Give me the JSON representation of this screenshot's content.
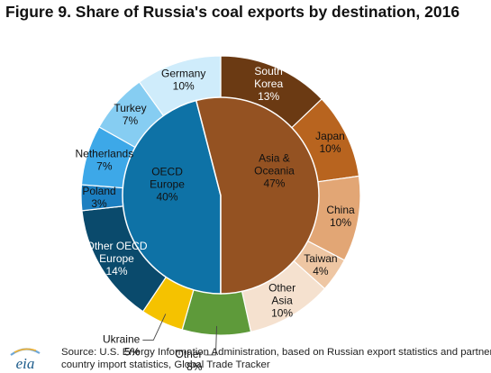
{
  "title": "Figure 9. Share of Russia's coal exports by destination, 2016",
  "source": "Source: U.S. Energy Information Administration, based on Russian export statistics and partner country import statistics, Global Trade Tracker",
  "logo": {
    "text": "eia",
    "colors": [
      "#1a5a8a",
      "#6fa8d8",
      "#f2b233"
    ]
  },
  "chart_data": {
    "type": "pie",
    "inner_ring": [
      {
        "label": [
          "OECD",
          "Europe"
        ],
        "pct": "40%",
        "value": 40,
        "color": "#0e72a6",
        "text_color": "#111111"
      },
      {
        "label": [
          "Asia &",
          "Oceania"
        ],
        "pct": "47%",
        "value": 47,
        "color": "#945222",
        "text_color": "#111111"
      }
    ],
    "outer_ring": [
      {
        "label": [
          "South",
          "Korea"
        ],
        "pct": "13%",
        "value": 13,
        "color": "#6b3a13",
        "text_color": "#ffffff"
      },
      {
        "label": [
          "Japan"
        ],
        "pct": "10%",
        "value": 10,
        "color": "#b8641f",
        "text_color": "#111111"
      },
      {
        "label": [
          "China"
        ],
        "pct": "10%",
        "value": 10,
        "color": "#e2a675",
        "text_color": "#111111"
      },
      {
        "label": [
          "Taiwan"
        ],
        "pct": "4%",
        "value": 4,
        "color": "#eec6a3",
        "text_color": "#111111"
      },
      {
        "label": [
          "Other",
          "Asia"
        ],
        "pct": "10%",
        "value": 10,
        "color": "#f5e1cf",
        "text_color": "#111111"
      },
      {
        "label": [
          "Other"
        ],
        "pct": "8%",
        "value": 8,
        "color": "#5e9a3a",
        "text_color": "#111111",
        "outside": true
      },
      {
        "label": [
          "Ukraine"
        ],
        "pct": "5%",
        "value": 5,
        "color": "#f5c200",
        "text_color": "#111111",
        "outside": true
      },
      {
        "label": [
          "Other OECD",
          "Europe"
        ],
        "pct": "14%",
        "value": 14,
        "color": "#0a4a6c",
        "text_color": "#ffffff"
      },
      {
        "label": [
          "Poland"
        ],
        "pct": "3%",
        "value": 3,
        "color": "#1c7fc1",
        "text_color": "#111111"
      },
      {
        "label": [
          "Netherlands"
        ],
        "pct": "7%",
        "value": 7,
        "color": "#3da8e8",
        "text_color": "#111111"
      },
      {
        "label": [
          "Turkey"
        ],
        "pct": "7%",
        "value": 7,
        "color": "#86cdf2",
        "text_color": "#111111"
      },
      {
        "label": [
          "Germany"
        ],
        "pct": "10%",
        "value": 10,
        "color": "#cfecfb",
        "text_color": "#111111"
      }
    ]
  }
}
